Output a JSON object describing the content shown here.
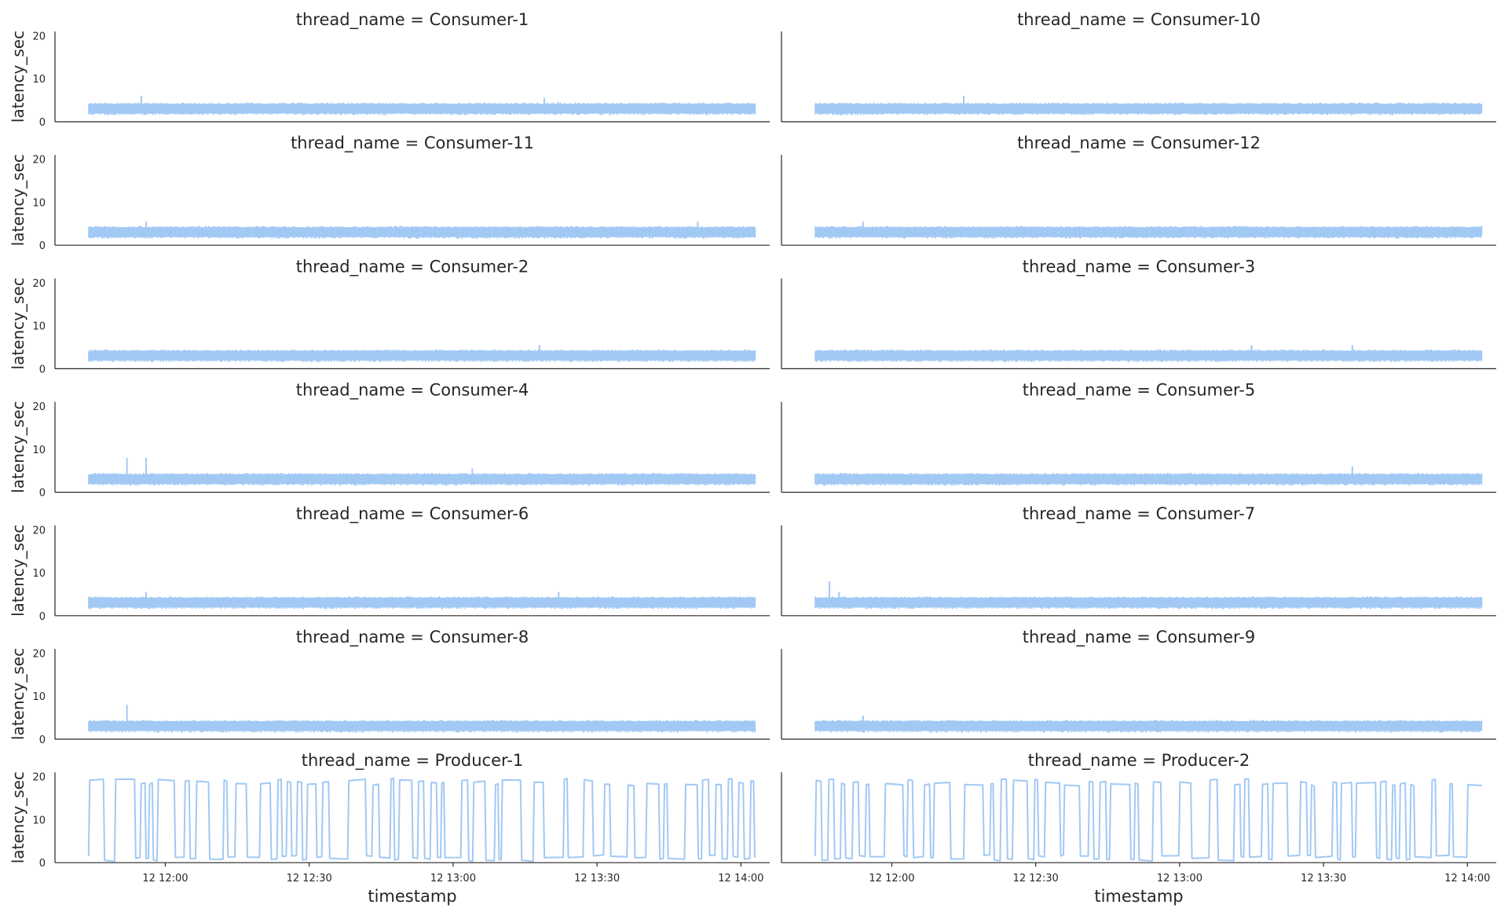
{
  "chart_data": {
    "type": "line",
    "layout": "facet-grid",
    "columns": 2,
    "xlabel": "timestamp",
    "ylabel": "latency_sec",
    "ylim": [
      0,
      21
    ],
    "y_ticks": [
      0,
      10,
      20
    ],
    "x_range": [
      "11:37",
      "14:06"
    ],
    "x_ticks": [
      {
        "time": "12:00",
        "label": "12 12:00"
      },
      {
        "time": "12:30",
        "label": "12 12:30"
      },
      {
        "time": "13:00",
        "label": "12 13:00"
      },
      {
        "time": "13:30",
        "label": "12 13:30"
      },
      {
        "time": "14:00",
        "label": "12 14:00"
      }
    ],
    "grid": false,
    "line_color": "#a1c9f4",
    "panels": [
      {
        "title": "thread_name = Consumer-1",
        "kind": "consumer",
        "band": [
          1.5,
          4.5
        ],
        "spikes": [
          {
            "time": "11:55",
            "value": 6
          },
          {
            "time": "13:19",
            "value": 5.5
          }
        ]
      },
      {
        "title": "thread_name = Consumer-10",
        "kind": "consumer",
        "band": [
          1.5,
          4.5
        ],
        "spikes": [
          {
            "time": "12:15",
            "value": 6
          }
        ]
      },
      {
        "title": "thread_name = Consumer-11",
        "kind": "consumer",
        "band": [
          1.5,
          4.5
        ],
        "spikes": [
          {
            "time": "11:56",
            "value": 5.5
          },
          {
            "time": "13:51",
            "value": 5.5
          }
        ]
      },
      {
        "title": "thread_name = Consumer-12",
        "kind": "consumer",
        "band": [
          1.5,
          4.5
        ],
        "spikes": [
          {
            "time": "11:54",
            "value": 5.5
          }
        ]
      },
      {
        "title": "thread_name = Consumer-2",
        "kind": "consumer",
        "band": [
          1.5,
          4.5
        ],
        "spikes": [
          {
            "time": "13:18",
            "value": 5.5
          }
        ]
      },
      {
        "title": "thread_name = Consumer-3",
        "kind": "consumer",
        "band": [
          1.5,
          4.5
        ],
        "spikes": [
          {
            "time": "13:15",
            "value": 5.5
          },
          {
            "time": "13:36",
            "value": 5.5
          }
        ]
      },
      {
        "title": "thread_name = Consumer-4",
        "kind": "consumer",
        "band": [
          1.5,
          4.5
        ],
        "spikes": [
          {
            "time": "11:52",
            "value": 8
          },
          {
            "time": "11:56",
            "value": 8
          },
          {
            "time": "13:04",
            "value": 5.5
          }
        ]
      },
      {
        "title": "thread_name = Consumer-5",
        "kind": "consumer",
        "band": [
          1.5,
          4.5
        ],
        "spikes": [
          {
            "time": "13:36",
            "value": 6
          }
        ]
      },
      {
        "title": "thread_name = Consumer-6",
        "kind": "consumer",
        "band": [
          1.5,
          4.5
        ],
        "spikes": [
          {
            "time": "11:56",
            "value": 5.5
          },
          {
            "time": "13:22",
            "value": 5.5
          }
        ]
      },
      {
        "title": "thread_name = Consumer-7",
        "kind": "consumer",
        "band": [
          1.5,
          4.5
        ],
        "spikes": [
          {
            "time": "11:47",
            "value": 8
          },
          {
            "time": "11:49",
            "value": 5.5
          }
        ]
      },
      {
        "title": "thread_name = Consumer-8",
        "kind": "consumer",
        "band": [
          1.5,
          4.5
        ],
        "spikes": [
          {
            "time": "11:52",
            "value": 8
          }
        ]
      },
      {
        "title": "thread_name = Consumer-9",
        "kind": "consumer",
        "band": [
          1.5,
          4.5
        ],
        "spikes": [
          {
            "time": "11:54",
            "value": 5.5
          }
        ]
      },
      {
        "title": "thread_name = Producer-1",
        "kind": "producer",
        "low": 0.5,
        "high": 19.5,
        "seed": 7
      },
      {
        "title": "thread_name = Producer-2",
        "kind": "producer",
        "low": 0.5,
        "high": 19.5,
        "seed": 13
      }
    ]
  }
}
